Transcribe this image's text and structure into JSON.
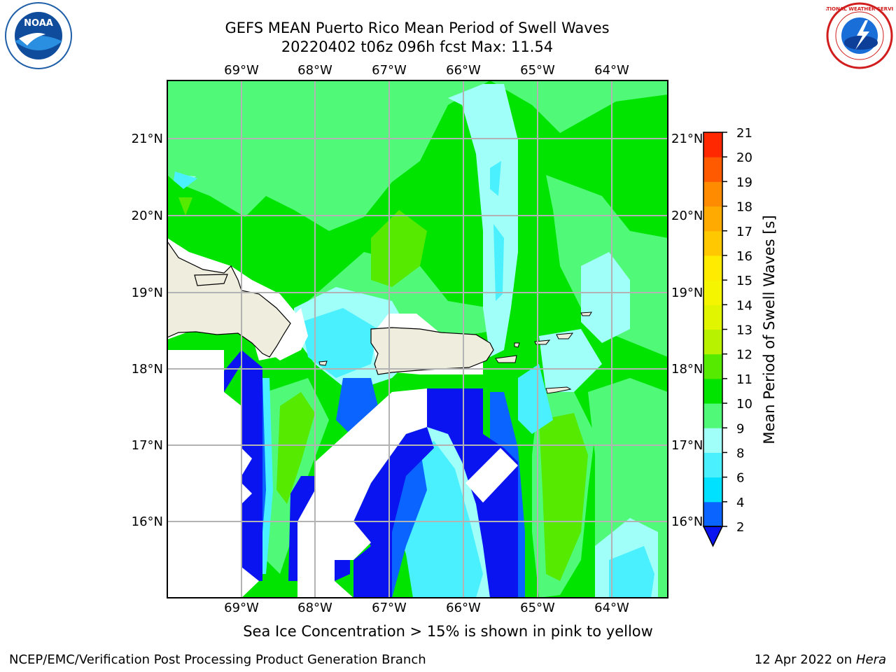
{
  "header": {
    "title_line1": "GEFS MEAN Puerto Rico Mean Period of Swell Waves",
    "title_line2": "20220402 t06z 096h fcst   Max: 11.54"
  },
  "logos": {
    "left": {
      "name": "noaa-logo",
      "text": "NOAA"
    },
    "right": {
      "name": "nws-logo",
      "text": "NATIONAL WEATHER SERVICE"
    }
  },
  "map": {
    "lon_labels": [
      "69°W",
      "68°W",
      "67°W",
      "66°W",
      "65°W",
      "64°W"
    ],
    "lat_labels": [
      "21°N",
      "20°N",
      "19°N",
      "18°N",
      "17°N",
      "16°N"
    ]
  },
  "colorbar": {
    "label": "Mean Period of Swell Waves [s]",
    "ticks": [
      "2",
      "4",
      "6",
      "8",
      "9",
      "10",
      "11",
      "12",
      "13",
      "14",
      "15",
      "16",
      "17",
      "18",
      "19",
      "20",
      "21"
    ],
    "colors": [
      "#0a64ff",
      "#00e1ff",
      "#4bf0ff",
      "#a0fff8",
      "#50fa78",
      "#00e400",
      "#55ea00",
      "#b9f200",
      "#e1f500",
      "#f5f500",
      "#ffeb00",
      "#ffc800",
      "#ffaa00",
      "#ff8c00",
      "#ff5a00",
      "#ff2800"
    ],
    "under_color": "#0a14f0"
  },
  "caption": "Sea Ice Concentration > 15% is shown in pink to yellow",
  "footer": {
    "left": "NCEP/EMC/Verification Post Processing Product Generation Branch",
    "right_prefix": "12 Apr 2022 on ",
    "right_italic": "Hera"
  }
}
